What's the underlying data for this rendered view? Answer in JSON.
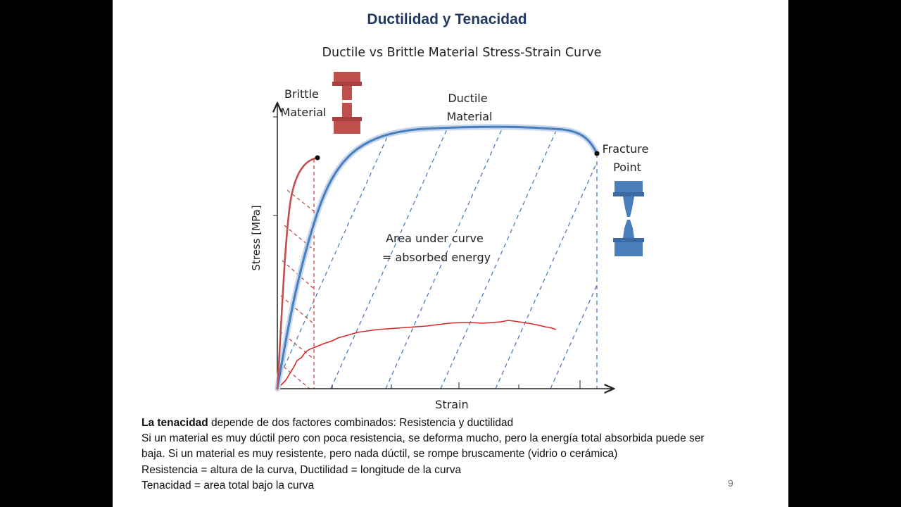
{
  "slide": {
    "title": "Ductilidad y Tenacidad",
    "page_number": "9"
  },
  "diagram": {
    "title": "Ductile vs Brittle Material Stress-Strain Curve",
    "x_axis_label": "Strain",
    "y_axis_label": "Stress [MPa]",
    "brittle_label_line1": "Brittle",
    "brittle_label_line2": "Material",
    "ductile_label_line1": "Ductile",
    "ductile_label_line2": "Material",
    "fracture_label_line1": "Fracture",
    "fracture_label_line2": "Point",
    "area_label_line1": "Area under curve",
    "area_label_line2": "= absorbed energy",
    "colors": {
      "brittle": "#c0504d",
      "ductile": "#4a7ebb",
      "low_toughness": "#d62828",
      "axis": "#222222"
    }
  },
  "text": {
    "line1_bold": "La tenacidad",
    "line1_rest": " depende de dos factores combinados: Resistencia y ductilidad",
    "line2": "Si un material es muy dúctil pero con poca resistencia, se deforma mucho, pero la energía total absorbida puede ser",
    "line3": "baja. Si un material es muy resistente, pero nada dúctil, se rompe bruscamente (vidrio o cerámica)",
    "line4": "Resistencia = altura de la curva, Ductilidad = longitude de la curva",
    "line5": "Tenacidad = area total bajo la curva"
  }
}
